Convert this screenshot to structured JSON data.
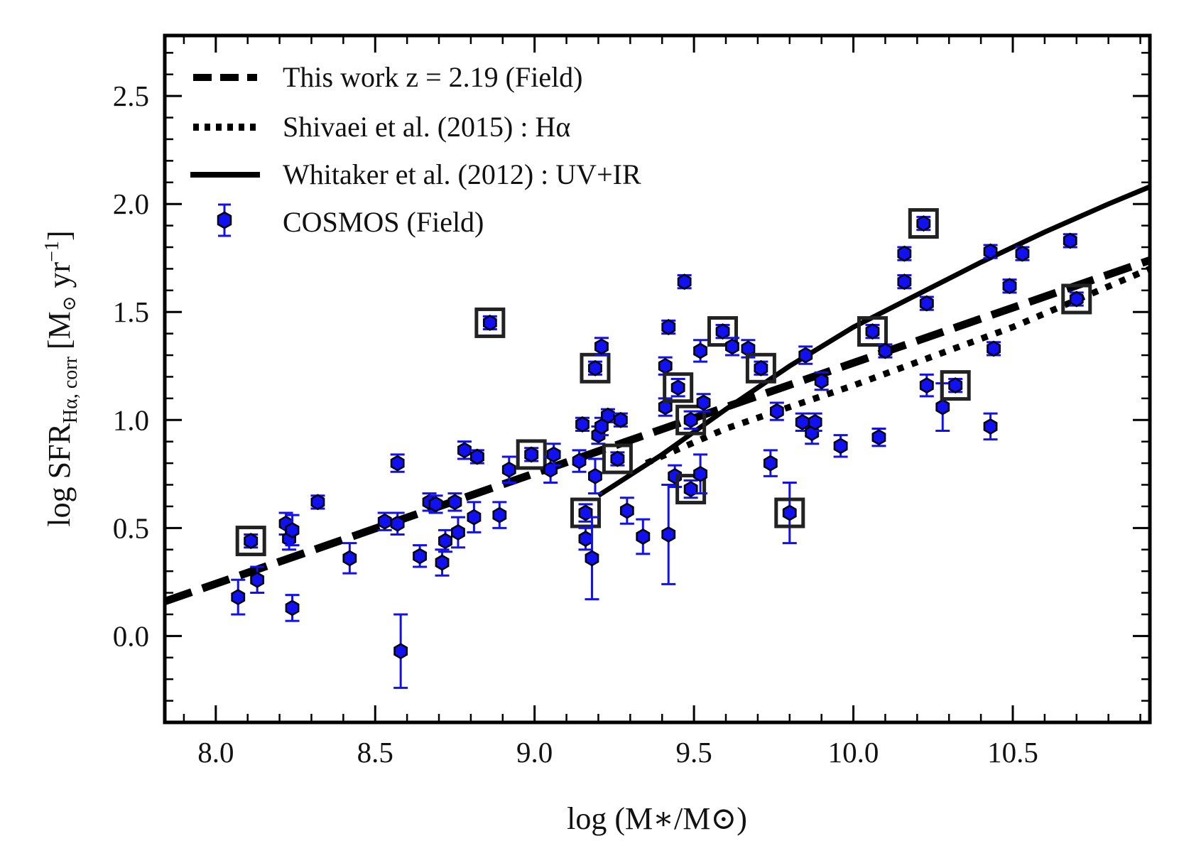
{
  "chart_data": {
    "type": "scatter",
    "title": "",
    "xlabel": "log (M∗/M⊙)",
    "ylabel": "log SFR",
    "ylabel_sub": "Hα, corr",
    "ylabel_unit_open": "[M",
    "ylabel_unit_sun": "⊙",
    "ylabel_unit_yr": " yr",
    "ylabel_unit_exp": "−1",
    "ylabel_unit_close": "]",
    "xlim": [
      7.84,
      10.93
    ],
    "ylim": [
      -0.4,
      2.78
    ],
    "xticks": [
      "8.0",
      "8.5",
      "9.0",
      "9.5",
      "10.0",
      "10.5"
    ],
    "yticks": [
      "0.0",
      "0.5",
      "1.0",
      "1.5",
      "2.0",
      "2.5"
    ],
    "colors": {
      "points": "#1010f0",
      "errorbars": "#1010f0",
      "lines": "#000000",
      "boxes": "#222222"
    },
    "legend": [
      {
        "label": "This work z = 2.19 (Field)",
        "style": "dashed"
      },
      {
        "label": "Shivaei et al. (2015) : Hα",
        "style": "dotted"
      },
      {
        "label": "Whitaker et al. (2012) : UV+IR",
        "style": "solid"
      },
      {
        "label": "COSMOS (Field)",
        "style": "marker"
      }
    ],
    "lines": [
      {
        "name": "This work z = 2.19 (Field)",
        "style": "dashed",
        "x": [
          7.84,
          10.93
        ],
        "y": [
          0.16,
          1.74
        ]
      },
      {
        "name": "Shivaei et al. (2015) : Hα",
        "style": "dotted",
        "x": [
          9.35,
          9.6,
          10.0,
          10.5,
          10.93
        ],
        "y": [
          0.8,
          0.96,
          1.16,
          1.43,
          1.7
        ]
      },
      {
        "name": "Whitaker et al. (2012) : UV+IR",
        "style": "solid",
        "x": [
          9.2,
          9.4,
          9.6,
          9.8,
          10.0,
          10.2,
          10.4,
          10.6,
          10.8,
          10.93
        ],
        "y": [
          0.65,
          0.84,
          1.05,
          1.25,
          1.43,
          1.58,
          1.73,
          1.87,
          2.0,
          2.08
        ]
      }
    ],
    "series": [
      {
        "name": "COSMOS (Field)",
        "points": [
          {
            "x": 8.07,
            "y": 0.18,
            "err": 0.08
          },
          {
            "x": 8.11,
            "y": 0.44,
            "err": 0.03,
            "boxed": true
          },
          {
            "x": 8.13,
            "y": 0.26,
            "err": 0.06
          },
          {
            "x": 8.22,
            "y": 0.52,
            "err": 0.05
          },
          {
            "x": 8.23,
            "y": 0.45,
            "err": 0.05
          },
          {
            "x": 8.24,
            "y": 0.49,
            "err": 0.07
          },
          {
            "x": 8.24,
            "y": 0.13,
            "err": 0.06
          },
          {
            "x": 8.32,
            "y": 0.62,
            "err": 0.03
          },
          {
            "x": 8.42,
            "y": 0.36,
            "err": 0.07
          },
          {
            "x": 8.53,
            "y": 0.53,
            "err": 0.04
          },
          {
            "x": 8.57,
            "y": 0.52,
            "err": 0.05
          },
          {
            "x": 8.57,
            "y": 0.8,
            "err": 0.04
          },
          {
            "x": 8.58,
            "y": -0.07,
            "err": 0.17
          },
          {
            "x": 8.64,
            "y": 0.37,
            "err": 0.05
          },
          {
            "x": 8.67,
            "y": 0.62,
            "err": 0.04
          },
          {
            "x": 8.69,
            "y": 0.61,
            "err": 0.04
          },
          {
            "x": 8.71,
            "y": 0.34,
            "err": 0.06
          },
          {
            "x": 8.72,
            "y": 0.44,
            "err": 0.05
          },
          {
            "x": 8.75,
            "y": 0.62,
            "err": 0.04
          },
          {
            "x": 8.76,
            "y": 0.48,
            "err": 0.07
          },
          {
            "x": 8.78,
            "y": 0.86,
            "err": 0.04
          },
          {
            "x": 8.81,
            "y": 0.55,
            "err": 0.07
          },
          {
            "x": 8.82,
            "y": 0.83,
            "err": 0.03
          },
          {
            "x": 8.86,
            "y": 1.45,
            "err": 0.03,
            "boxed": true
          },
          {
            "x": 8.89,
            "y": 0.56,
            "err": 0.06
          },
          {
            "x": 8.92,
            "y": 0.77,
            "err": 0.06
          },
          {
            "x": 8.99,
            "y": 0.84,
            "err": 0.03,
            "boxed": true
          },
          {
            "x": 9.05,
            "y": 0.77,
            "err": 0.06
          },
          {
            "x": 9.06,
            "y": 0.84,
            "err": 0.05
          },
          {
            "x": 9.14,
            "y": 0.81,
            "err": 0.05
          },
          {
            "x": 9.15,
            "y": 0.98,
            "err": 0.03
          },
          {
            "x": 9.16,
            "y": 0.57,
            "err": 0.04,
            "boxed": true
          },
          {
            "x": 9.16,
            "y": 0.45,
            "err": 0.05
          },
          {
            "x": 9.18,
            "y": 0.36,
            "err": 0.19
          },
          {
            "x": 9.19,
            "y": 1.24,
            "err": 0.03,
            "boxed": true
          },
          {
            "x": 9.19,
            "y": 0.74,
            "err": 0.08
          },
          {
            "x": 9.2,
            "y": 0.93,
            "err": 0.04
          },
          {
            "x": 9.21,
            "y": 1.34,
            "err": 0.04
          },
          {
            "x": 9.21,
            "y": 0.97,
            "err": 0.04
          },
          {
            "x": 9.23,
            "y": 1.02,
            "err": 0.03
          },
          {
            "x": 9.26,
            "y": 0.82,
            "err": 0.03,
            "boxed": true
          },
          {
            "x": 9.27,
            "y": 1.0,
            "err": 0.03
          },
          {
            "x": 9.29,
            "y": 0.58,
            "err": 0.06
          },
          {
            "x": 9.34,
            "y": 0.46,
            "err": 0.08
          },
          {
            "x": 9.41,
            "y": 1.06,
            "err": 0.04
          },
          {
            "x": 9.41,
            "y": 1.25,
            "err": 0.04
          },
          {
            "x": 9.42,
            "y": 1.43,
            "err": 0.03
          },
          {
            "x": 9.42,
            "y": 0.47,
            "err": 0.23
          },
          {
            "x": 9.44,
            "y": 0.74,
            "err": 0.05
          },
          {
            "x": 9.45,
            "y": 1.15,
            "err": 0.04,
            "boxed": true
          },
          {
            "x": 9.47,
            "y": 1.64,
            "err": 0.03
          },
          {
            "x": 9.49,
            "y": 0.68,
            "err": 0.04,
            "boxed": true
          },
          {
            "x": 9.49,
            "y": 1.0,
            "err": 0.04,
            "boxed": true
          },
          {
            "x": 9.52,
            "y": 0.75,
            "err": 0.09
          },
          {
            "x": 9.52,
            "y": 1.32,
            "err": 0.05
          },
          {
            "x": 9.53,
            "y": 1.08,
            "err": 0.04
          },
          {
            "x": 9.59,
            "y": 1.41,
            "err": 0.03,
            "boxed": true
          },
          {
            "x": 9.62,
            "y": 1.34,
            "err": 0.04
          },
          {
            "x": 9.67,
            "y": 1.33,
            "err": 0.04
          },
          {
            "x": 9.71,
            "y": 1.24,
            "err": 0.03,
            "boxed": true
          },
          {
            "x": 9.74,
            "y": 0.8,
            "err": 0.06
          },
          {
            "x": 9.76,
            "y": 1.04,
            "err": 0.04
          },
          {
            "x": 9.8,
            "y": 0.57,
            "err": 0.14,
            "boxed": true
          },
          {
            "x": 9.84,
            "y": 0.99,
            "err": 0.04
          },
          {
            "x": 9.85,
            "y": 1.3,
            "err": 0.04
          },
          {
            "x": 9.87,
            "y": 0.94,
            "err": 0.05
          },
          {
            "x": 9.88,
            "y": 0.99,
            "err": 0.04
          },
          {
            "x": 9.9,
            "y": 1.18,
            "err": 0.04
          },
          {
            "x": 9.96,
            "y": 0.88,
            "err": 0.05
          },
          {
            "x": 10.06,
            "y": 1.41,
            "err": 0.03,
            "boxed": true
          },
          {
            "x": 10.08,
            "y": 0.92,
            "err": 0.04
          },
          {
            "x": 10.1,
            "y": 1.32,
            "err": 0.03
          },
          {
            "x": 10.16,
            "y": 1.77,
            "err": 0.03
          },
          {
            "x": 10.16,
            "y": 1.64,
            "err": 0.03
          },
          {
            "x": 10.22,
            "y": 1.91,
            "err": 0.03,
            "boxed": true
          },
          {
            "x": 10.23,
            "y": 1.16,
            "err": 0.05
          },
          {
            "x": 10.23,
            "y": 1.54,
            "err": 0.03
          },
          {
            "x": 10.28,
            "y": 1.06,
            "err": 0.11
          },
          {
            "x": 10.32,
            "y": 1.16,
            "err": 0.03,
            "boxed": true
          },
          {
            "x": 10.43,
            "y": 1.78,
            "err": 0.03
          },
          {
            "x": 10.43,
            "y": 0.97,
            "err": 0.06
          },
          {
            "x": 10.44,
            "y": 1.33,
            "err": 0.03
          },
          {
            "x": 10.49,
            "y": 1.62,
            "err": 0.03
          },
          {
            "x": 10.53,
            "y": 1.77,
            "err": 0.03
          },
          {
            "x": 10.68,
            "y": 1.83,
            "err": 0.03
          },
          {
            "x": 10.7,
            "y": 1.56,
            "err": 0.03,
            "boxed": true
          }
        ]
      }
    ]
  }
}
